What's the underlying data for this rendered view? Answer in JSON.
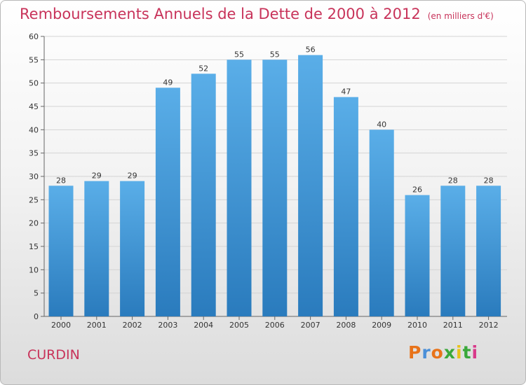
{
  "header": {
    "title": "Remboursements Annuels de la Dette de 2000 à 2012",
    "subtitle": "(en milliers d'€)"
  },
  "footer": {
    "commune": "CURDIN",
    "logo": "Proxiti"
  },
  "colors": {
    "title": "#c8335a",
    "bar_top": "#5aaee8",
    "bar_bottom": "#2a7bbd",
    "logo_letters": [
      "#e8731a",
      "#4a8fd8",
      "#e8731a",
      "#3aa83a",
      "#e8c21a",
      "#3aa83a",
      "#d83a8a"
    ]
  },
  "chart_data": {
    "type": "bar",
    "title": "Remboursements Annuels de la Dette de 2000 à 2012",
    "xlabel": "",
    "ylabel": "",
    "categories": [
      "2000",
      "2001",
      "2002",
      "2003",
      "2004",
      "2005",
      "2006",
      "2007",
      "2008",
      "2009",
      "2010",
      "2011",
      "2012"
    ],
    "values": [
      28,
      29,
      29,
      49,
      52,
      55,
      55,
      56,
      47,
      40,
      26,
      28,
      28
    ],
    "ylim": [
      0,
      60
    ],
    "yticks": [
      0,
      5,
      10,
      15,
      20,
      25,
      30,
      35,
      40,
      45,
      50,
      55,
      60
    ],
    "grid": true,
    "legend": "none"
  }
}
